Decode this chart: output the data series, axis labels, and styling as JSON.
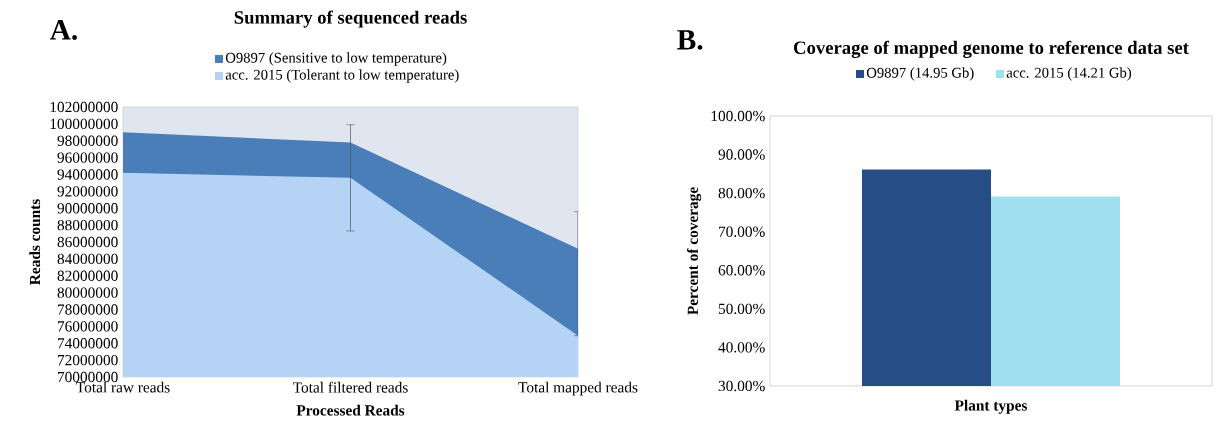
{
  "chart_data": [
    {
      "type": "area",
      "title": "Summary of sequenced reads",
      "xlabel": "Processed Reads",
      "ylabel": "Reads counts",
      "categories": [
        "Total raw reads",
        "Total filtered reads",
        "Total mapped reads"
      ],
      "series": [
        {
          "name": "O9897 (Sensitive to low temperature)",
          "color": "#4a7eb8",
          "values": [
            99000000,
            97800000,
            85200000
          ]
        },
        {
          "name": "acc. 2015 (Tolerant to low temperature)",
          "color": "#b5d3f5",
          "values": [
            94200000,
            93600000,
            74900000
          ],
          "errors": [
            null,
            6300000,
            [
              74900000,
              89600000
            ]
          ]
        }
      ],
      "ylim": [
        70000000,
        102000000
      ],
      "yticks": [
        70000000,
        72000000,
        74000000,
        76000000,
        78000000,
        80000000,
        82000000,
        84000000,
        86000000,
        88000000,
        90000000,
        92000000,
        94000000,
        96000000,
        98000000,
        100000000,
        102000000
      ],
      "legend": "top",
      "annotations": [
        "A."
      ]
    },
    {
      "type": "bar",
      "title": "Coverage of mapped genome to reference data set",
      "xlabel": "Plant types",
      "ylabel": "Percent of coverage",
      "categories": [
        null
      ],
      "series": [
        {
          "name": "O9897 (14.95 Gb)",
          "color": "#264d86",
          "values": [
            86.1
          ]
        },
        {
          "name": "acc. 2015 (14.21 Gb)",
          "color": "#9fdff0",
          "values": [
            79.1
          ]
        }
      ],
      "ylim": [
        30,
        100
      ],
      "yticks": [
        {
          "value": 30,
          "label": "30.00%"
        },
        {
          "value": 40,
          "label": "40.00%"
        },
        {
          "value": 50,
          "label": "50.00%"
        },
        {
          "value": 60,
          "label": "60.00%"
        },
        {
          "value": 70,
          "label": "70.00%"
        },
        {
          "value": 80,
          "label": "80.00%"
        },
        {
          "value": 90,
          "label": "90.00%"
        },
        {
          "value": 100,
          "label": "100.00%"
        }
      ],
      "legend": "top",
      "annotations": [
        "B."
      ]
    }
  ]
}
